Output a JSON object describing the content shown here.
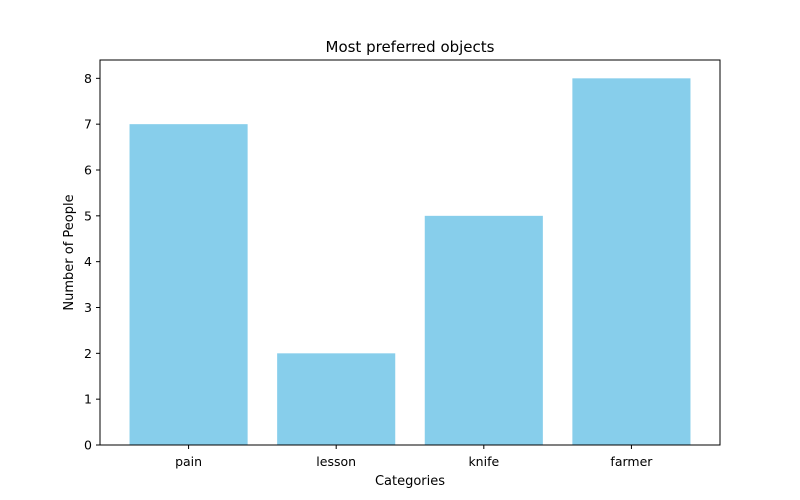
{
  "chart_data": {
    "type": "bar",
    "title": "Most preferred objects",
    "xlabel": "Categories",
    "ylabel": "Number of People",
    "categories": [
      "pain",
      "lesson",
      "knife",
      "farmer"
    ],
    "values": [
      7,
      2,
      5,
      8
    ],
    "ylim": [
      0,
      8.4
    ],
    "yticks": [
      0,
      1,
      2,
      3,
      4,
      5,
      6,
      7,
      8
    ],
    "bar_color": "#87ceeb",
    "grid": false,
    "legend": "none"
  }
}
